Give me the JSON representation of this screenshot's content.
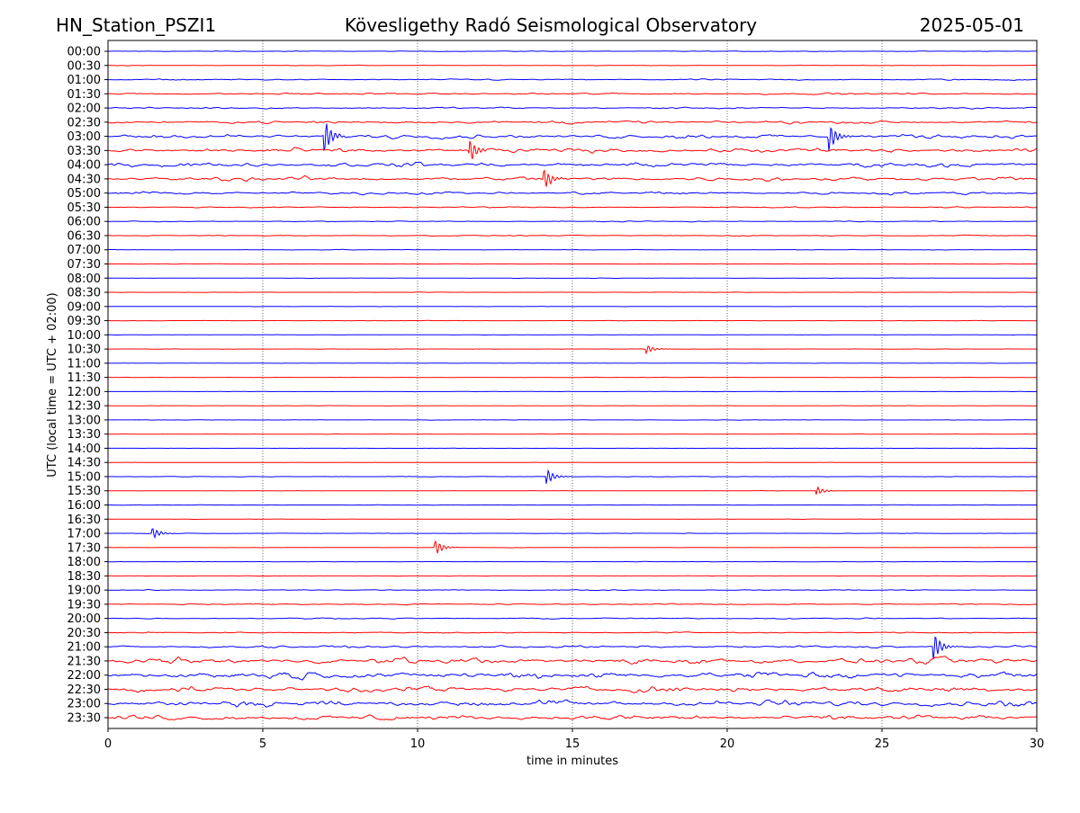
{
  "chart_data": {
    "type": "line",
    "title_left": "HN_Station_PSZI1",
    "title": "Kövesligethy Radó Seismological Observatory",
    "title_right": "2025-05-01",
    "xlabel": "time in minutes",
    "ylabel": "UTC (local time = UTC + 02:00)",
    "xlim": [
      0,
      30
    ],
    "xticks": [
      "0",
      "5",
      "10",
      "15",
      "20",
      "25",
      "30"
    ],
    "grid": "vertical dotted at 5-minute ticks",
    "colors": [
      "#0000ff",
      "#ff0000"
    ],
    "rows": [
      "00:00",
      "00:30",
      "01:00",
      "01:30",
      "02:00",
      "02:30",
      "03:00",
      "03:30",
      "04:00",
      "04:30",
      "05:00",
      "05:30",
      "06:00",
      "06:30",
      "07:00",
      "07:30",
      "08:00",
      "08:30",
      "09:00",
      "09:30",
      "10:00",
      "10:30",
      "11:00",
      "11:30",
      "12:00",
      "12:30",
      "13:00",
      "13:30",
      "14:00",
      "14:30",
      "15:00",
      "15:30",
      "16:00",
      "16:30",
      "17:00",
      "17:30",
      "18:00",
      "18:30",
      "19:00",
      "19:30",
      "20:00",
      "20:30",
      "21:00",
      "21:30",
      "22:00",
      "22:30",
      "23:00",
      "23:30"
    ],
    "noise_level": [
      0.05,
      0.05,
      0.12,
      0.15,
      0.15,
      0.25,
      0.35,
      0.4,
      0.4,
      0.35,
      0.25,
      0.1,
      0.08,
      0.08,
      0.05,
      0.04,
      0.04,
      0.03,
      0.03,
      0.03,
      0.03,
      0.03,
      0.02,
      0.03,
      0.03,
      0.03,
      0.03,
      0.03,
      0.02,
      0.02,
      0.04,
      0.03,
      0.03,
      0.03,
      0.04,
      0.03,
      0.03,
      0.04,
      0.08,
      0.12,
      0.1,
      0.1,
      0.2,
      0.5,
      0.6,
      0.5,
      0.55,
      0.45
    ],
    "events": [
      {
        "row": "03:00",
        "minute": 7.0,
        "amplitude": 1.2
      },
      {
        "row": "03:00",
        "minute": 23.3,
        "amplitude": 1.0
      },
      {
        "row": "03:30",
        "minute": 11.7,
        "amplitude": 0.8
      },
      {
        "row": "04:30",
        "minute": 14.1,
        "amplitude": 0.7
      },
      {
        "row": "10:30",
        "minute": 17.4,
        "amplitude": 0.3
      },
      {
        "row": "15:30",
        "minute": 22.9,
        "amplitude": 0.3
      },
      {
        "row": "17:00",
        "minute": 1.45,
        "amplitude": 0.4
      },
      {
        "row": "17:30",
        "minute": 10.6,
        "amplitude": 0.5
      },
      {
        "row": "15:00",
        "minute": 14.2,
        "amplitude": 0.5
      },
      {
        "row": "21:00",
        "minute": 26.7,
        "amplitude": 0.9
      }
    ]
  }
}
